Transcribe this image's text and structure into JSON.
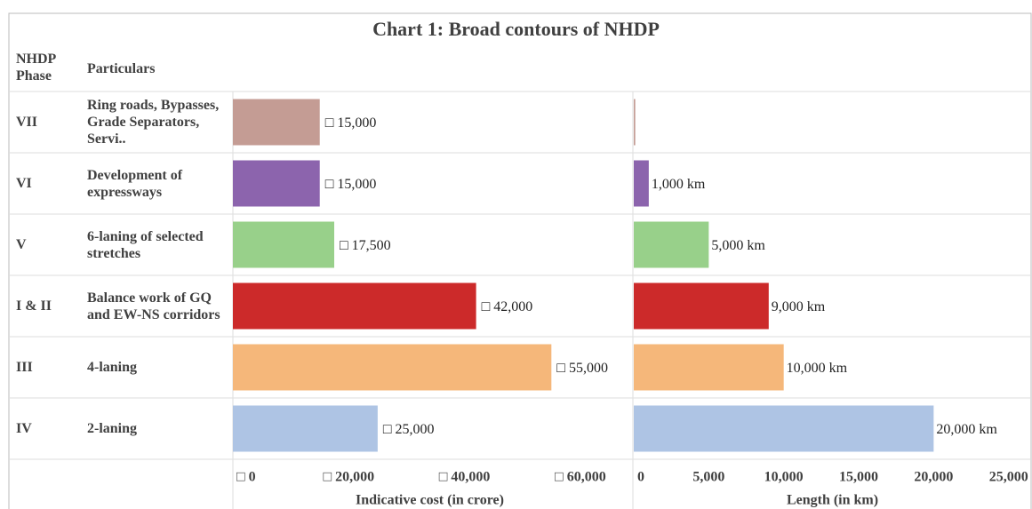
{
  "chart_data": {
    "type": "bar",
    "title": "Chart 1: Broad contours of NHDP",
    "phase_header": "NHDP Phase",
    "particulars_header": "Particulars",
    "phases": [
      "VII",
      "VI",
      "V",
      "I & II",
      "III",
      "IV"
    ],
    "categories": [
      "Ring roads, Bypasses, Grade Separators, Servi..",
      "Development of expressways",
      "6-laning of selected stretches",
      "Balance work of GQ and EW-NS corridors",
      "4-laning",
      "2-laning"
    ],
    "colors": [
      "#c49c94",
      "#8c64ad",
      "#98d08a",
      "#cc2a2a",
      "#f5b77a",
      "#aec4e4"
    ],
    "grid": false,
    "panels": [
      {
        "xlabel": "Indicative cost (in crore)",
        "values": [
          15000,
          15000,
          17500,
          42000,
          55000,
          25000
        ],
        "value_labels": [
          "□ 15,000",
          "□ 15,000",
          "□ 17,500",
          "□ 42,000",
          "□ 55,000",
          "□ 25,000"
        ],
        "xlim": [
          0,
          68000
        ],
        "xticks": [
          {
            "value": 0,
            "label": "□ 0"
          },
          {
            "value": 20000,
            "label": "□ 20,000"
          },
          {
            "value": 40000,
            "label": "□ 40,000"
          },
          {
            "value": 60000,
            "label": "□ 60,000"
          }
        ]
      },
      {
        "xlabel": "Length (in km)",
        "values": [
          100,
          1000,
          5000,
          9000,
          10000,
          20000
        ],
        "value_labels": [
          null,
          "1,000 km",
          "5,000 km",
          "9,000 km",
          "10,000 km",
          "20,000 km"
        ],
        "xlim": [
          0,
          26500
        ],
        "xticks": [
          0,
          {
            "value": 5000,
            "label": "5,000"
          },
          {
            "value": 10000,
            "label": "10,000"
          },
          {
            "value": 15000,
            "label": "15,000"
          },
          {
            "value": 20000,
            "label": "20,000"
          },
          {
            "value": 25000,
            "label": "25,000"
          }
        ]
      }
    ]
  }
}
